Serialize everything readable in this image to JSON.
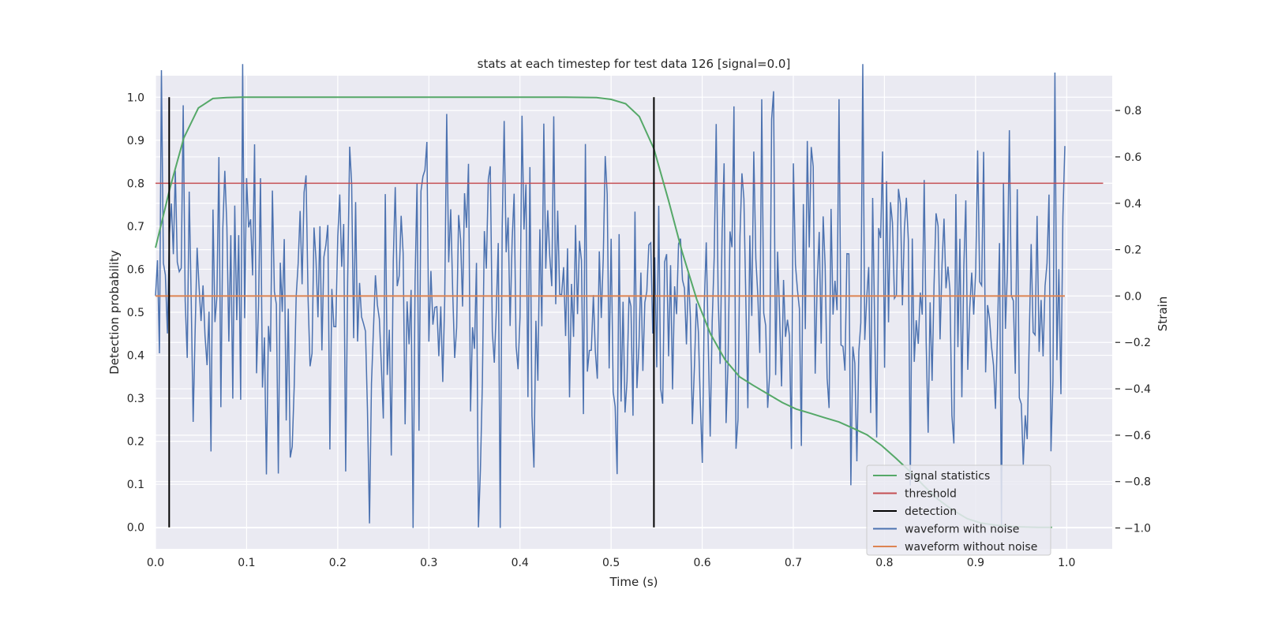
{
  "chart_data": {
    "type": "line",
    "title": "stats at each timestep for test data 126 [signal=0.0]",
    "xlabel": "Time (s)",
    "ylabel_left": "Detection probability",
    "ylabel_right": "Strain",
    "xlim": [
      0.0,
      1.05
    ],
    "ylim_left": [
      -0.05,
      1.05
    ],
    "ylim_right": [
      -1.09,
      0.95
    ],
    "x_ticks": [
      "0.0",
      "0.1",
      "0.2",
      "0.3",
      "0.4",
      "0.5",
      "0.6",
      "0.7",
      "0.8",
      "0.9",
      "1.0"
    ],
    "y_ticks_left": [
      "0.0",
      "0.1",
      "0.2",
      "0.3",
      "0.4",
      "0.5",
      "0.6",
      "0.7",
      "0.8",
      "0.9",
      "1.0"
    ],
    "y_ticks_right": [
      "−1.0",
      "−0.8",
      "−0.6",
      "−0.4",
      "−0.2",
      "0.0",
      "0.2",
      "0.4",
      "0.6",
      "0.8"
    ],
    "grid": true,
    "legend_position": "lower-right",
    "background": "#EAEAF2",
    "series": [
      {
        "name": "signal statistics",
        "axis": "left",
        "color": "#55A868",
        "x": [
          0.0,
          0.016,
          0.031,
          0.047,
          0.063,
          0.078,
          0.094,
          0.109,
          0.125,
          0.2,
          0.3,
          0.4,
          0.45,
          0.484,
          0.5,
          0.516,
          0.531,
          0.547,
          0.563,
          0.578,
          0.594,
          0.609,
          0.625,
          0.641,
          0.656,
          0.672,
          0.688,
          0.703,
          0.719,
          0.734,
          0.75,
          0.766,
          0.781,
          0.797,
          0.813,
          0.828,
          0.844,
          0.859,
          0.875,
          0.891,
          0.906,
          0.922,
          0.938,
          0.953,
          0.969,
          0.984
        ],
        "y": [
          0.65,
          0.79,
          0.905,
          0.975,
          0.997,
          0.999,
          1.0,
          1.0,
          1.0,
          1.0,
          1.0,
          1.0,
          1.0,
          0.999,
          0.995,
          0.985,
          0.955,
          0.88,
          0.76,
          0.64,
          0.53,
          0.45,
          0.39,
          0.35,
          0.33,
          0.31,
          0.29,
          0.275,
          0.265,
          0.255,
          0.245,
          0.23,
          0.215,
          0.19,
          0.16,
          0.13,
          0.095,
          0.065,
          0.04,
          0.02,
          0.01,
          0.005,
          0.002,
          0.001,
          0.0,
          0.0
        ]
      },
      {
        "name": "threshold",
        "axis": "left",
        "color": "#C44E52",
        "x": [
          0.0,
          1.04
        ],
        "y": [
          0.8,
          0.8
        ]
      },
      {
        "name": "detection",
        "axis": "left",
        "color": "#000000",
        "x": [
          0.015,
          0.547
        ],
        "y_range": [
          0.0,
          1.0
        ]
      },
      {
        "name": "waveform with noise",
        "axis": "right",
        "color": "#4C72B0",
        "x_range": [
          0.0,
          0.998
        ],
        "n_points": 1024,
        "y_envelope": [
          -1.0,
          1.0
        ]
      },
      {
        "name": "waveform without noise",
        "axis": "right",
        "color": "#DD8452",
        "x": [
          0.0,
          0.998
        ],
        "y": [
          0.0,
          0.0
        ]
      }
    ]
  }
}
